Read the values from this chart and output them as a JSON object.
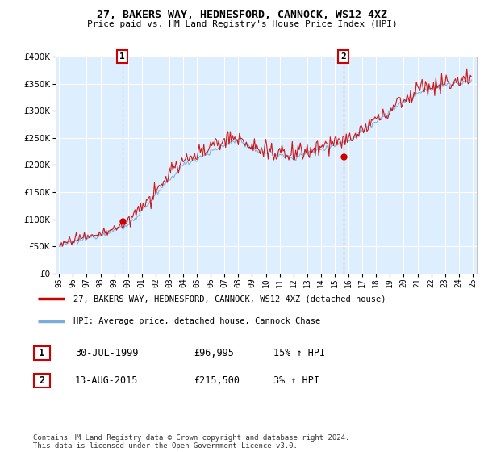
{
  "title": "27, BAKERS WAY, HEDNESFORD, CANNOCK, WS12 4XZ",
  "subtitle": "Price paid vs. HM Land Registry's House Price Index (HPI)",
  "ylim": [
    0,
    400000
  ],
  "xlim_start": 1994.75,
  "xlim_end": 2025.3,
  "transaction1": {
    "date_num": 1999.58,
    "price": 96995,
    "label": "1"
  },
  "transaction2": {
    "date_num": 2015.62,
    "price": 215500,
    "label": "2"
  },
  "legend_line1": "27, BAKERS WAY, HEDNESFORD, CANNOCK, WS12 4XZ (detached house)",
  "legend_line2": "HPI: Average price, detached house, Cannock Chase",
  "table_row1": [
    "1",
    "30-JUL-1999",
    "£96,995",
    "15% ↑ HPI"
  ],
  "table_row2": [
    "2",
    "13-AUG-2015",
    "£215,500",
    "3% ↑ HPI"
  ],
  "footer": "Contains HM Land Registry data © Crown copyright and database right 2024.\nThis data is licensed under the Open Government Licence v3.0.",
  "line_color_red": "#cc0000",
  "line_color_blue": "#7aacda",
  "vline1_color": "#999999",
  "vline2_color": "#cc0000",
  "bg_chart": "#ddeeff",
  "grid_color": "#ffffff",
  "xtick_labels": [
    "95",
    "96",
    "97",
    "98",
    "99",
    "00",
    "01",
    "02",
    "03",
    "04",
    "05",
    "06",
    "07",
    "08",
    "09",
    "10",
    "11",
    "12",
    "13",
    "14",
    "15",
    "16",
    "17",
    "18",
    "19",
    "20",
    "21",
    "22",
    "23",
    "24",
    "25"
  ]
}
